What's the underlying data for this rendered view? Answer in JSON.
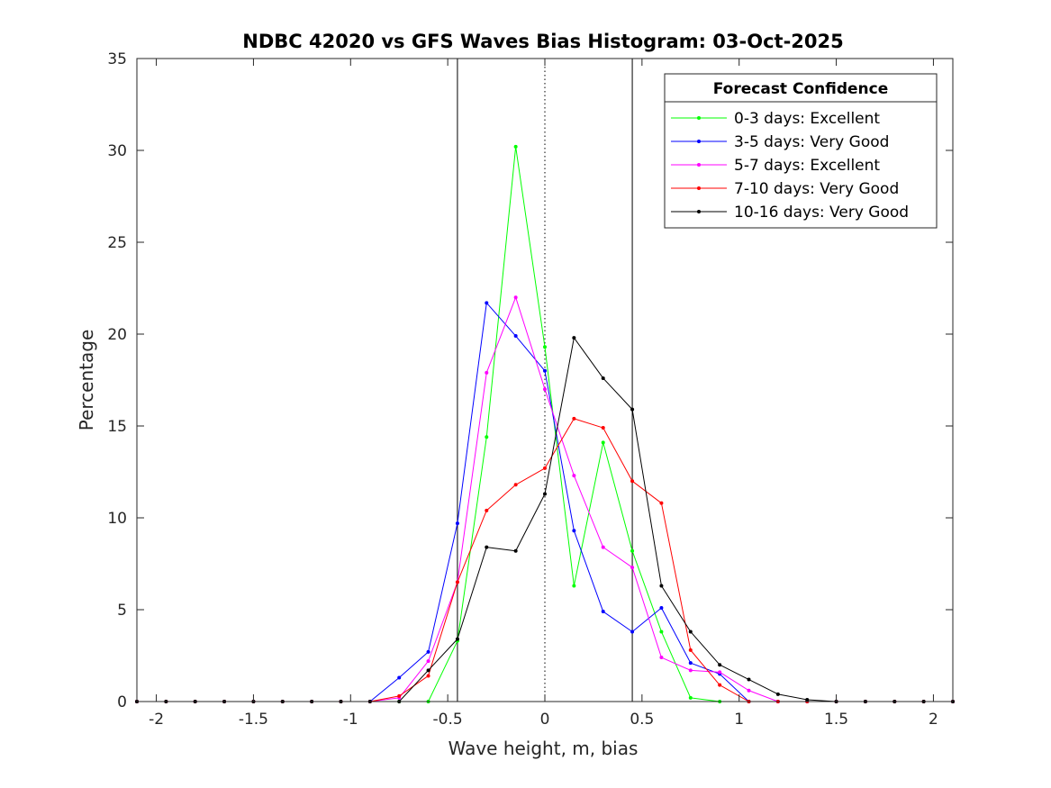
{
  "chart_data": {
    "type": "line",
    "title": "NDBC 42020 vs GFS Waves Bias Histogram: 03-Oct-2025",
    "xlabel": "Wave height, m, bias",
    "ylabel": "Percentage",
    "xlim": [
      -2.1,
      2.1
    ],
    "ylim": [
      0,
      35
    ],
    "xticks": [
      -2,
      -1.5,
      -1,
      -0.5,
      0,
      0.5,
      1,
      1.5,
      2
    ],
    "xtick_labels": [
      "-2",
      "-1.5",
      "-1",
      "-0.5",
      "0",
      "0.5",
      "1",
      "1.5",
      "2"
    ],
    "yticks": [
      0,
      5,
      10,
      15,
      20,
      25,
      30,
      35
    ],
    "ytick_labels": [
      "0",
      "5",
      "10",
      "15",
      "20",
      "25",
      "30",
      "35"
    ],
    "grid": false,
    "reference_lines": [
      {
        "x": -0.45,
        "style": "solid"
      },
      {
        "x": 0,
        "style": "dotted"
      },
      {
        "x": 0.45,
        "style": "solid"
      }
    ],
    "legend": {
      "title": "Forecast Confidence",
      "position": "top-right"
    },
    "x": [
      -2.1,
      -1.95,
      -1.8,
      -1.65,
      -1.5,
      -1.35,
      -1.2,
      -1.05,
      -0.9,
      -0.75,
      -0.6,
      -0.45,
      -0.3,
      -0.15,
      0,
      0.15,
      0.3,
      0.45,
      0.6,
      0.75,
      0.9,
      1.05,
      1.2,
      1.35,
      1.5,
      1.65,
      1.8,
      1.95,
      2.1
    ],
    "series": [
      {
        "name": "0-3 days: Excellent",
        "color": "#00ff00",
        "values": [
          0,
          0,
          0,
          0,
          0,
          0,
          0,
          0,
          0,
          0,
          0,
          3.3,
          14.4,
          30.2,
          19.3,
          6.3,
          14.1,
          8.2,
          3.8,
          0.2,
          0,
          0,
          0,
          0,
          0,
          0,
          0,
          0,
          0
        ]
      },
      {
        "name": "3-5 days: Very Good",
        "color": "#0000ff",
        "values": [
          0,
          0,
          0,
          0,
          0,
          0,
          0,
          0,
          0,
          1.3,
          2.7,
          9.7,
          21.7,
          19.9,
          18.0,
          9.3,
          4.9,
          3.8,
          5.1,
          2.1,
          1.5,
          0,
          0,
          0,
          0,
          0,
          0,
          0,
          0
        ]
      },
      {
        "name": "5-7 days: Excellent",
        "color": "#ff00ff",
        "values": [
          0,
          0,
          0,
          0,
          0,
          0,
          0,
          0,
          0,
          0.2,
          2.2,
          6.5,
          17.9,
          22.0,
          17.0,
          12.3,
          8.4,
          7.3,
          2.4,
          1.7,
          1.6,
          0.6,
          0,
          0,
          0,
          0,
          0,
          0,
          0
        ]
      },
      {
        "name": "7-10 days: Very Good",
        "color": "#ff0000",
        "values": [
          0,
          0,
          0,
          0,
          0,
          0,
          0,
          0,
          0,
          0.3,
          1.4,
          6.5,
          10.4,
          11.8,
          12.7,
          15.4,
          14.9,
          12.0,
          10.8,
          2.8,
          0.9,
          0,
          0,
          0,
          0,
          0,
          0,
          0,
          0
        ]
      },
      {
        "name": "10-16 days: Very Good",
        "color": "#000000",
        "values": [
          0,
          0,
          0,
          0,
          0,
          0,
          0,
          0,
          0,
          0,
          1.7,
          3.4,
          8.4,
          8.2,
          11.3,
          19.8,
          17.6,
          15.9,
          6.3,
          3.8,
          2.0,
          1.2,
          0.4,
          0.1,
          0,
          0,
          0,
          0,
          0
        ]
      }
    ]
  }
}
